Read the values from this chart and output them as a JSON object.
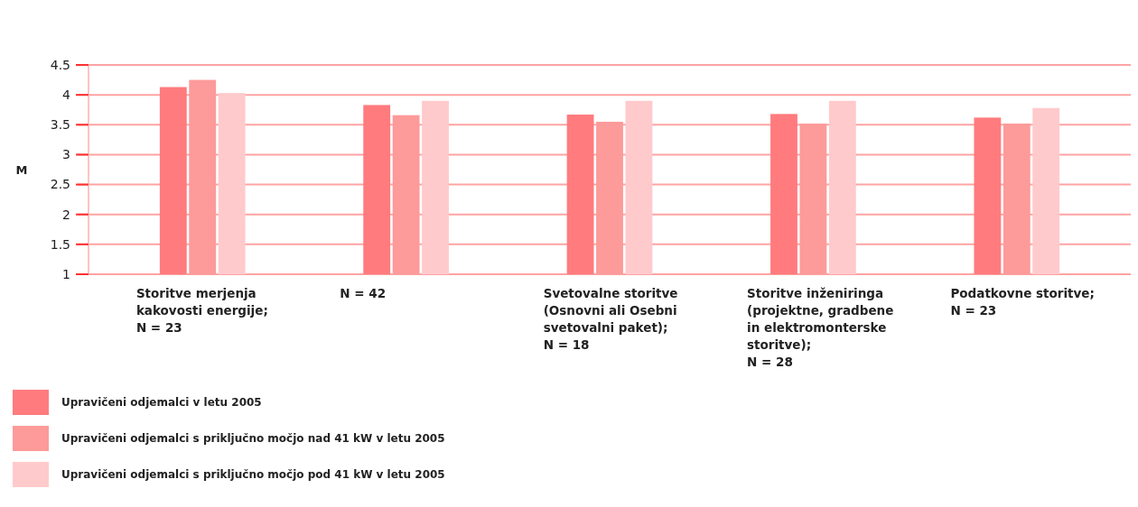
{
  "chart_data": {
    "type": "bar",
    "ylabel": "M",
    "categories": [
      "Storitve merjenja\nkakovosti energije;\nN = 23",
      "N = 42",
      "Svetovalne storitve\n(Osnovni ali Osebni\nsvetovalni paket);\nN = 18",
      "Storitve inženiringa\n(projektne, gradbene\nin elektromonterske\nstoritve);\nN = 28",
      "Podatkovne storitve;\nN = 23"
    ],
    "series": [
      {
        "name": "Upravičeni odjemalci v letu 2005",
        "color": "#ff7b7e",
        "values": [
          4.13,
          3.83,
          3.67,
          3.68,
          3.62
        ]
      },
      {
        "name": "Upravičeni odjemalci s priključno močjo nad 41 kW v letu 2005",
        "color": "#fd9a9a",
        "values": [
          4.25,
          3.66,
          3.55,
          3.52,
          3.52
        ]
      },
      {
        "name": "Upravičeni odjemalci s priključno močjo pod 41 kW v letu 2005",
        "color": "#ffcacc",
        "values": [
          4.03,
          3.9,
          3.9,
          3.9,
          3.78
        ]
      }
    ],
    "ylim": [
      1,
      4.5
    ],
    "yticks": [
      1,
      1.5,
      2,
      2.5,
      3,
      3.5,
      4,
      4.5
    ],
    "grid": "y",
    "legend": "bottom"
  }
}
